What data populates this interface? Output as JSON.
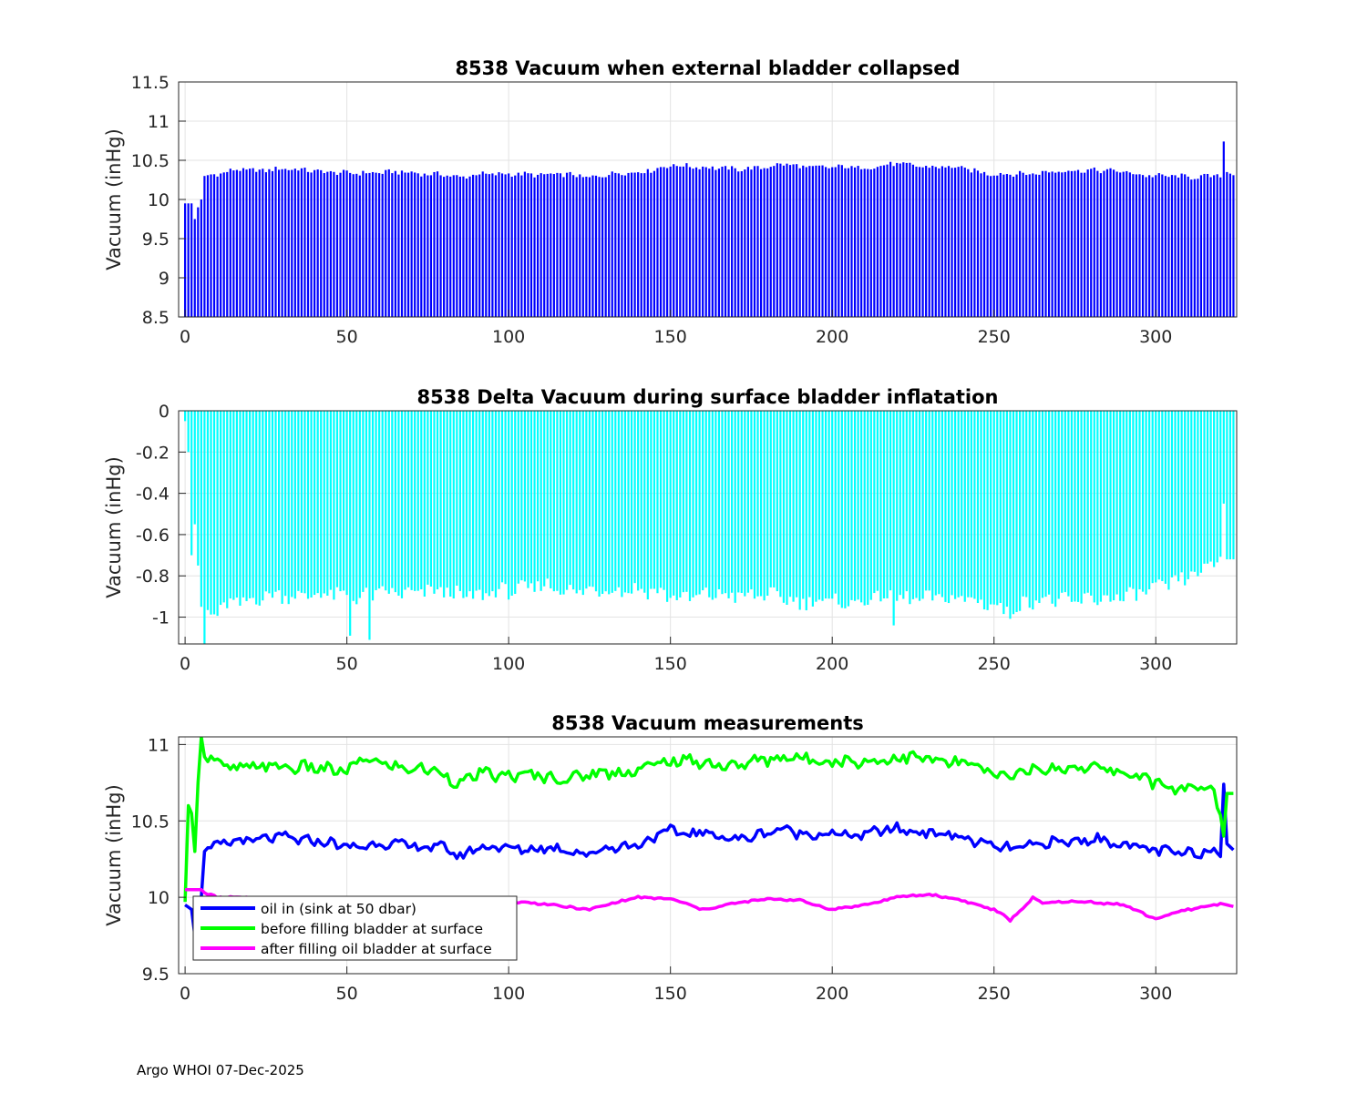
{
  "footer": "Argo WHOI 07-Dec-2025",
  "chart_data": [
    {
      "type": "bar",
      "title": "8538 Vacuum when external bladder collapsed",
      "xlabel": "",
      "ylabel": "Vacuum (inHg)",
      "xlim": [
        -2,
        325
      ],
      "ylim": [
        8.5,
        11.5
      ],
      "xticks": [
        0,
        50,
        100,
        150,
        200,
        250,
        300
      ],
      "yticks": [
        8.5,
        9,
        9.5,
        10,
        10.5,
        11,
        11.5
      ],
      "grid": true,
      "color": "#0000ff",
      "bar_count": 325,
      "note": "One bar per profile 0-324; values generated from piecewise-linear trend + variation below",
      "trend": [
        [
          0,
          9.95
        ],
        [
          2,
          9.95
        ],
        [
          3,
          9.75
        ],
        [
          4,
          9.9
        ],
        [
          5,
          10.0
        ],
        [
          6,
          10.3
        ],
        [
          10,
          10.33
        ],
        [
          17,
          10.38
        ],
        [
          20,
          10.37
        ],
        [
          30,
          10.39
        ],
        [
          40,
          10.37
        ],
        [
          50,
          10.33
        ],
        [
          60,
          10.35
        ],
        [
          70,
          10.34
        ],
        [
          80,
          10.32
        ],
        [
          85,
          10.27
        ],
        [
          90,
          10.33
        ],
        [
          100,
          10.32
        ],
        [
          110,
          10.32
        ],
        [
          120,
          10.31
        ],
        [
          125,
          10.28
        ],
        [
          130,
          10.32
        ],
        [
          140,
          10.35
        ],
        [
          150,
          10.43
        ],
        [
          160,
          10.42
        ],
        [
          170,
          10.38
        ],
        [
          180,
          10.42
        ],
        [
          185,
          10.45
        ],
        [
          190,
          10.42
        ],
        [
          200,
          10.41
        ],
        [
          210,
          10.41
        ],
        [
          220,
          10.45
        ],
        [
          230,
          10.42
        ],
        [
          240,
          10.4
        ],
        [
          250,
          10.32
        ],
        [
          260,
          10.33
        ],
        [
          270,
          10.36
        ],
        [
          280,
          10.38
        ],
        [
          290,
          10.35
        ],
        [
          300,
          10.3
        ],
        [
          310,
          10.29
        ],
        [
          318,
          10.3
        ],
        [
          320,
          10.3
        ],
        [
          321,
          10.74
        ],
        [
          322,
          10.35
        ],
        [
          324,
          10.31
        ]
      ],
      "variation": 0.05,
      "peak": {
        "x": 321,
        "value": 10.74
      }
    },
    {
      "type": "bar",
      "title": "8538 Delta Vacuum during surface bladder inflatation",
      "xlabel": "",
      "ylabel": "Vacuum (inHg)",
      "xlim": [
        -2,
        325
      ],
      "ylim": [
        -1.13,
        0
      ],
      "xticks": [
        0,
        50,
        100,
        150,
        200,
        250,
        300
      ],
      "yticks": [
        -1,
        -0.8,
        -0.6,
        -0.4,
        -0.2,
        0
      ],
      "ytick_labels": [
        "-1",
        "-0.8",
        "-0.6",
        "-0.4",
        "-0.2",
        "0"
      ],
      "grid": true,
      "color": "#00ffff",
      "bar_count": 325,
      "trend": [
        [
          0,
          -0.05
        ],
        [
          1,
          -0.2
        ],
        [
          2,
          -0.7
        ],
        [
          3,
          -0.55
        ],
        [
          5,
          -0.95
        ],
        [
          8,
          -1.0
        ],
        [
          15,
          -0.93
        ],
        [
          25,
          -0.9
        ],
        [
          40,
          -0.89
        ],
        [
          50,
          -0.9
        ],
        [
          60,
          -0.89
        ],
        [
          70,
          -0.88
        ],
        [
          80,
          -0.88
        ],
        [
          90,
          -0.9
        ],
        [
          100,
          -0.87
        ],
        [
          110,
          -0.85
        ],
        [
          120,
          -0.87
        ],
        [
          130,
          -0.87
        ],
        [
          140,
          -0.86
        ],
        [
          150,
          -0.9
        ],
        [
          160,
          -0.9
        ],
        [
          170,
          -0.89
        ],
        [
          180,
          -0.9
        ],
        [
          190,
          -0.92
        ],
        [
          200,
          -0.93
        ],
        [
          210,
          -0.92
        ],
        [
          220,
          -0.9
        ],
        [
          230,
          -0.92
        ],
        [
          240,
          -0.9
        ],
        [
          250,
          -0.95
        ],
        [
          255,
          -0.97
        ],
        [
          260,
          -0.92
        ],
        [
          270,
          -0.92
        ],
        [
          280,
          -0.92
        ],
        [
          290,
          -0.9
        ],
        [
          300,
          -0.87
        ],
        [
          310,
          -0.8
        ],
        [
          315,
          -0.78
        ],
        [
          320,
          -0.72
        ],
        [
          321,
          -0.45
        ],
        [
          322,
          -0.72
        ],
        [
          324,
          -0.72
        ]
      ],
      "variation": 0.06,
      "dips": [
        {
          "x": 6,
          "value": -1.13
        },
        {
          "x": 51,
          "value": -1.09
        },
        {
          "x": 57,
          "value": -1.11
        },
        {
          "x": 219,
          "value": -1.04
        }
      ]
    },
    {
      "type": "line",
      "title": "8538 Vacuum measurements",
      "xlabel": "",
      "ylabel": "Vacuum (inHg)",
      "xlim": [
        -2,
        325
      ],
      "ylim": [
        9.5,
        11.05
      ],
      "xticks": [
        0,
        50,
        100,
        150,
        200,
        250,
        300
      ],
      "yticks": [
        9.5,
        10,
        10.5,
        11
      ],
      "grid": true,
      "legend_position": "bottom-left",
      "series": [
        {
          "name": "oil in (sink at 50 dbar)",
          "color": "#0000ff",
          "trend": [
            [
              0,
              9.95
            ],
            [
              2,
              9.92
            ],
            [
              3,
              9.75
            ],
            [
              4,
              9.9
            ],
            [
              5,
              10.0
            ],
            [
              6,
              10.3
            ],
            [
              10,
              10.33
            ],
            [
              17,
              10.38
            ],
            [
              20,
              10.37
            ],
            [
              30,
              10.39
            ],
            [
              40,
              10.37
            ],
            [
              50,
              10.33
            ],
            [
              60,
              10.35
            ],
            [
              70,
              10.34
            ],
            [
              80,
              10.32
            ],
            [
              85,
              10.27
            ],
            [
              90,
              10.33
            ],
            [
              100,
              10.32
            ],
            [
              110,
              10.32
            ],
            [
              120,
              10.31
            ],
            [
              125,
              10.28
            ],
            [
              130,
              10.32
            ],
            [
              140,
              10.35
            ],
            [
              150,
              10.43
            ],
            [
              160,
              10.42
            ],
            [
              170,
              10.38
            ],
            [
              180,
              10.42
            ],
            [
              185,
              10.45
            ],
            [
              190,
              10.42
            ],
            [
              200,
              10.41
            ],
            [
              210,
              10.41
            ],
            [
              220,
              10.45
            ],
            [
              230,
              10.42
            ],
            [
              240,
              10.4
            ],
            [
              250,
              10.32
            ],
            [
              260,
              10.33
            ],
            [
              270,
              10.36
            ],
            [
              280,
              10.38
            ],
            [
              290,
              10.35
            ],
            [
              300,
              10.3
            ],
            [
              310,
              10.29
            ],
            [
              318,
              10.3
            ],
            [
              320,
              10.3
            ],
            [
              321,
              10.74
            ],
            [
              322,
              10.35
            ],
            [
              324,
              10.31
            ]
          ],
          "variation": 0.05
        },
        {
          "name": "before filling bladder at surface",
          "color": "#00ff00",
          "trend": [
            [
              0,
              9.97
            ],
            [
              1,
              10.6
            ],
            [
              2,
              10.55
            ],
            [
              3,
              10.3
            ],
            [
              4,
              10.75
            ],
            [
              5,
              11.05
            ],
            [
              6,
              10.92
            ],
            [
              10,
              10.88
            ],
            [
              15,
              10.84
            ],
            [
              20,
              10.85
            ],
            [
              30,
              10.86
            ],
            [
              40,
              10.84
            ],
            [
              50,
              10.83
            ],
            [
              55,
              10.9
            ],
            [
              60,
              10.88
            ],
            [
              70,
              10.84
            ],
            [
              80,
              10.82
            ],
            [
              85,
              10.74
            ],
            [
              90,
              10.8
            ],
            [
              100,
              10.8
            ],
            [
              110,
              10.79
            ],
            [
              120,
              10.78
            ],
            [
              130,
              10.82
            ],
            [
              140,
              10.83
            ],
            [
              150,
              10.9
            ],
            [
              160,
              10.88
            ],
            [
              170,
              10.86
            ],
            [
              180,
              10.9
            ],
            [
              185,
              10.93
            ],
            [
              190,
              10.9
            ],
            [
              200,
              10.9
            ],
            [
              210,
              10.88
            ],
            [
              220,
              10.92
            ],
            [
              230,
              10.9
            ],
            [
              240,
              10.88
            ],
            [
              250,
              10.8
            ],
            [
              260,
              10.82
            ],
            [
              270,
              10.85
            ],
            [
              280,
              10.85
            ],
            [
              290,
              10.82
            ],
            [
              300,
              10.75
            ],
            [
              310,
              10.7
            ],
            [
              318,
              10.7
            ],
            [
              320,
              10.55
            ],
            [
              321,
              10.4
            ],
            [
              322,
              10.68
            ],
            [
              324,
              10.68
            ]
          ],
          "variation": 0.06
        },
        {
          "name": "after filling oil bladder at surface",
          "color": "#ff00ff",
          "trend": [
            [
              0,
              10.05
            ],
            [
              5,
              10.05
            ],
            [
              6,
              10.03
            ],
            [
              10,
              10.0
            ],
            [
              30,
              9.99
            ],
            [
              60,
              9.98
            ],
            [
              90,
              9.97
            ],
            [
              100,
              9.97
            ],
            [
              110,
              9.96
            ],
            [
              120,
              9.93
            ],
            [
              125,
              9.92
            ],
            [
              130,
              9.95
            ],
            [
              140,
              10.0
            ],
            [
              150,
              9.99
            ],
            [
              160,
              9.92
            ],
            [
              170,
              9.96
            ],
            [
              180,
              9.99
            ],
            [
              190,
              9.98
            ],
            [
              200,
              9.92
            ],
            [
              210,
              9.95
            ],
            [
              220,
              10.0
            ],
            [
              230,
              10.02
            ],
            [
              240,
              9.98
            ],
            [
              250,
              9.92
            ],
            [
              255,
              9.85
            ],
            [
              260,
              9.95
            ],
            [
              262,
              10.0
            ],
            [
              265,
              9.96
            ],
            [
              270,
              9.97
            ],
            [
              280,
              9.97
            ],
            [
              290,
              9.95
            ],
            [
              300,
              9.86
            ],
            [
              310,
              9.92
            ],
            [
              318,
              9.95
            ],
            [
              320,
              9.96
            ],
            [
              324,
              9.94
            ]
          ],
          "variation": 0.01
        }
      ]
    }
  ]
}
